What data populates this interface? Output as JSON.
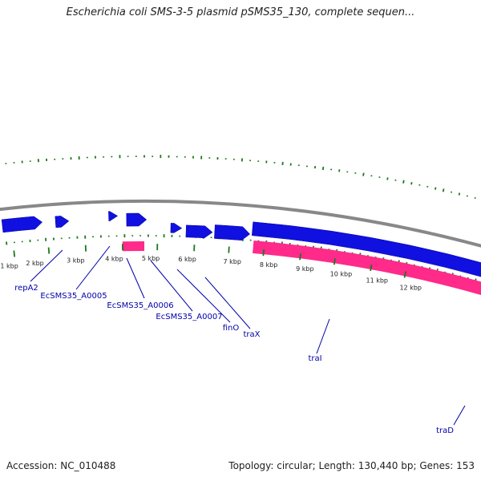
{
  "title": "Escherichia coli SMS-3-5 plasmid pSMS35_130, complete sequen...",
  "footer": {
    "accession": "Accession: NC_010488",
    "summary": "Topology: circular; Length: 130,440 bp; Genes: 153"
  },
  "map": {
    "colors": {
      "backbone": "#888888",
      "forward_gene": "#1010e0",
      "rna_feature": "#ff2a8a",
      "other_feature": "#a8f040",
      "gc_plot": "#1a7a1a",
      "label": "#0000aa",
      "leader": "#0000aa"
    },
    "ticks": [
      {
        "label": "1 kbp"
      },
      {
        "label": "2 kbp"
      },
      {
        "label": "3 kbp"
      },
      {
        "label": "4 kbp"
      },
      {
        "label": "5 kbp"
      },
      {
        "label": "6 kbp"
      },
      {
        "label": "7 kbp"
      },
      {
        "label": "8 kbp"
      },
      {
        "label": "9 kbp"
      },
      {
        "label": "10 kbp"
      },
      {
        "label": "11 kbp"
      },
      {
        "label": "12 kbp"
      }
    ],
    "gene_labels": [
      {
        "label": "repA2"
      },
      {
        "label": "EcSMS35_A0005"
      },
      {
        "label": "EcSMS35_A0006"
      },
      {
        "label": "EcSMS35_A0007"
      },
      {
        "label": "finO"
      },
      {
        "label": "traX"
      },
      {
        "label": "traI"
      },
      {
        "label": "traD"
      }
    ]
  }
}
